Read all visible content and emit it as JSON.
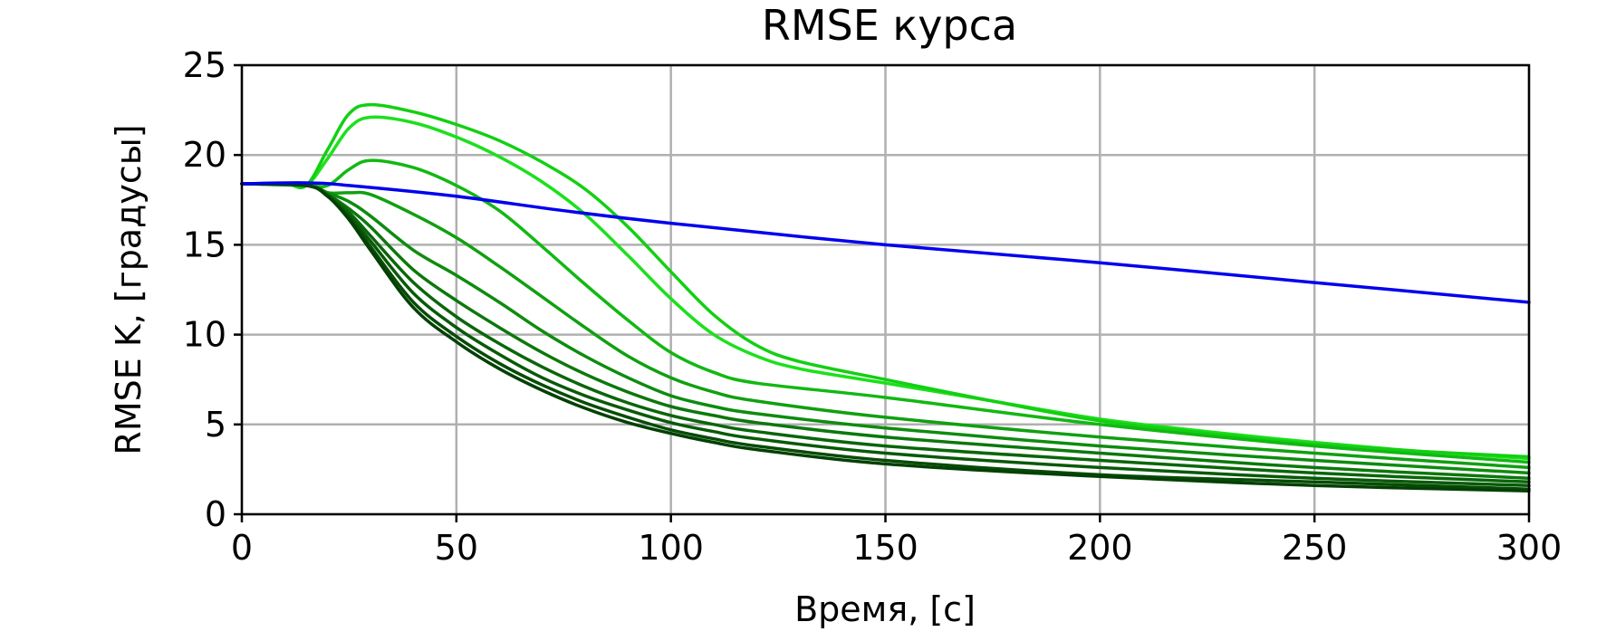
{
  "chart_data": {
    "type": "line",
    "title": "RMSE курса",
    "xlabel": "Время, [с]",
    "ylabel": "RMSE K, [градусы]",
    "xlim": [
      0,
      300
    ],
    "ylim": [
      0,
      25
    ],
    "xticks": [
      0,
      50,
      100,
      150,
      200,
      250,
      300
    ],
    "xtick_labels": [
      "0",
      "50",
      "100",
      "150",
      "200",
      "250",
      "300"
    ],
    "yticks": [
      0,
      5,
      10,
      15,
      20,
      25
    ],
    "ytick_labels": [
      "0",
      "5",
      "10",
      "15",
      "20",
      "25"
    ],
    "grid": true,
    "legend": "none",
    "series": [
      {
        "color": "#0000ee",
        "x": [
          0,
          15,
          25,
          50,
          75,
          100,
          150,
          200,
          250,
          300
        ],
        "y": [
          18.4,
          18.45,
          18.3,
          17.7,
          16.9,
          16.2,
          15.0,
          14.0,
          12.9,
          11.8
        ]
      },
      {
        "color": "#1ce01c",
        "x": [
          0,
          10,
          15,
          20,
          25,
          30,
          40,
          50,
          60,
          70,
          80,
          90,
          100,
          110,
          120,
          130,
          150,
          175,
          200,
          225,
          250,
          275,
          300
        ],
        "y": [
          18.4,
          18.4,
          18.3,
          19.8,
          21.5,
          22.1,
          21.8,
          21.0,
          19.9,
          18.5,
          16.7,
          14.4,
          12.0,
          10.0,
          8.8,
          8.1,
          7.3,
          6.3,
          5.3,
          4.6,
          4.0,
          3.5,
          3.1
        ]
      },
      {
        "color": "#12d012",
        "x": [
          0,
          10,
          15,
          20,
          25,
          30,
          40,
          50,
          60,
          70,
          80,
          90,
          100,
          110,
          120,
          130,
          150,
          175,
          200,
          225,
          250,
          275,
          300
        ],
        "y": [
          18.4,
          18.4,
          18.3,
          20.3,
          22.3,
          22.8,
          22.4,
          21.7,
          20.8,
          19.6,
          18.1,
          16.0,
          13.5,
          11.1,
          9.4,
          8.5,
          7.5,
          6.3,
          5.2,
          4.5,
          3.9,
          3.5,
          3.2
        ]
      },
      {
        "color": "#12b812",
        "x": [
          0,
          15,
          20,
          25,
          30,
          40,
          50,
          60,
          70,
          80,
          90,
          100,
          110,
          120,
          150,
          200,
          250,
          300
        ],
        "y": [
          18.4,
          18.3,
          18.3,
          19.2,
          19.7,
          19.3,
          18.3,
          16.9,
          14.9,
          12.8,
          10.8,
          9.0,
          7.9,
          7.3,
          6.5,
          5.0,
          3.8,
          2.9
        ]
      },
      {
        "color": "#10a010",
        "x": [
          0,
          15,
          20,
          25,
          30,
          40,
          50,
          60,
          70,
          80,
          90,
          100,
          110,
          120,
          150,
          200,
          250,
          300
        ],
        "y": [
          18.4,
          18.3,
          17.9,
          17.9,
          17.8,
          16.7,
          15.4,
          13.8,
          12.1,
          10.4,
          8.8,
          7.6,
          6.8,
          6.3,
          5.4,
          4.3,
          3.4,
          2.6
        ]
      },
      {
        "color": "#0e8c0e",
        "x": [
          0,
          15,
          20,
          25,
          30,
          40,
          50,
          60,
          70,
          80,
          90,
          100,
          110,
          120,
          150,
          200,
          250,
          300
        ],
        "y": [
          18.4,
          18.3,
          17.9,
          17.4,
          16.6,
          14.7,
          13.3,
          11.8,
          10.2,
          8.8,
          7.6,
          6.6,
          6.0,
          5.6,
          4.8,
          3.8,
          3.0,
          2.3
        ]
      },
      {
        "color": "#0c780c",
        "x": [
          0,
          15,
          20,
          25,
          30,
          40,
          50,
          60,
          70,
          80,
          90,
          100,
          110,
          120,
          150,
          200,
          250,
          300
        ],
        "y": [
          18.4,
          18.3,
          17.8,
          17.0,
          16.0,
          13.6,
          11.9,
          10.4,
          9.0,
          7.8,
          6.8,
          6.0,
          5.5,
          5.1,
          4.3,
          3.4,
          2.6,
          2.0
        ]
      },
      {
        "color": "#0a660a",
        "x": [
          0,
          15,
          20,
          25,
          30,
          40,
          50,
          60,
          70,
          80,
          90,
          100,
          110,
          120,
          150,
          200,
          250,
          300
        ],
        "y": [
          18.4,
          18.3,
          17.8,
          16.8,
          15.5,
          12.9,
          11.0,
          9.5,
          8.2,
          7.1,
          6.2,
          5.5,
          5.0,
          4.6,
          3.8,
          3.0,
          2.3,
          1.8
        ]
      },
      {
        "color": "#085a08",
        "x": [
          0,
          15,
          20,
          25,
          30,
          40,
          50,
          60,
          70,
          80,
          90,
          100,
          110,
          120,
          150,
          200,
          250,
          300
        ],
        "y": [
          18.4,
          18.3,
          17.7,
          16.6,
          15.2,
          12.3,
          10.4,
          8.9,
          7.6,
          6.6,
          5.8,
          5.1,
          4.6,
          4.2,
          3.4,
          2.6,
          2.0,
          1.6
        ]
      },
      {
        "color": "#064c06",
        "x": [
          0,
          15,
          20,
          25,
          30,
          40,
          50,
          60,
          70,
          80,
          90,
          100,
          110,
          120,
          150,
          200,
          250,
          300
        ],
        "y": [
          18.4,
          18.3,
          17.7,
          16.5,
          14.9,
          11.8,
          9.9,
          8.4,
          7.2,
          6.2,
          5.4,
          4.7,
          4.2,
          3.8,
          3.0,
          2.2,
          1.8,
          1.4
        ]
      },
      {
        "color": "#044004",
        "x": [
          0,
          15,
          20,
          25,
          30,
          40,
          50,
          60,
          70,
          80,
          90,
          100,
          110,
          120,
          150,
          200,
          250,
          300
        ],
        "y": [
          18.4,
          18.3,
          17.7,
          16.4,
          14.7,
          11.5,
          9.6,
          8.1,
          6.9,
          5.9,
          5.1,
          4.5,
          4.0,
          3.6,
          2.8,
          2.1,
          1.6,
          1.3
        ]
      }
    ]
  }
}
